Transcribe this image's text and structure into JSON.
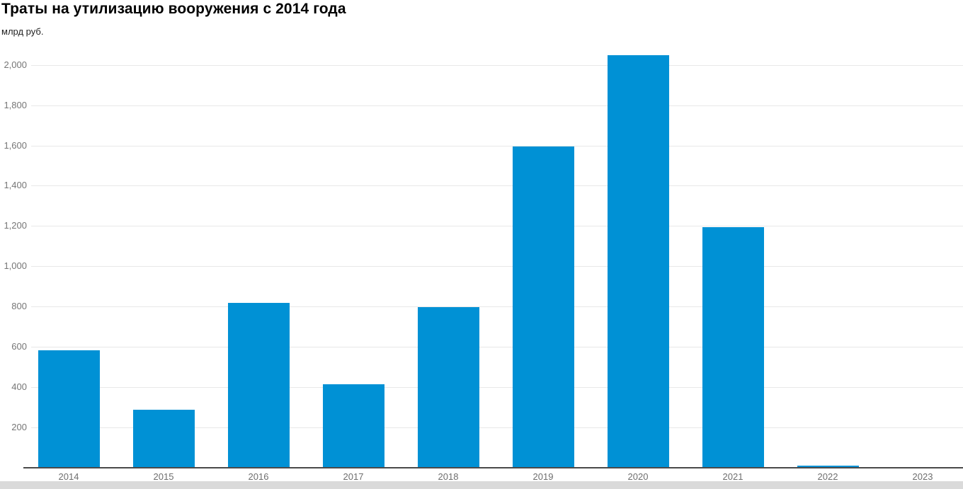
{
  "header": {
    "title": "Траты на утилизацию вооружения с 2014 года",
    "subtitle": "млрд руб."
  },
  "chart_data": {
    "type": "bar",
    "title": "Траты на утилизацию вооружения с 2014 года",
    "ylabel": "млрд руб.",
    "xlabel": "",
    "categories": [
      "2014",
      "2015",
      "2016",
      "2017",
      "2018",
      "2019",
      "2020",
      "2021",
      "2022",
      "2023"
    ],
    "values": [
      580,
      285,
      815,
      410,
      795,
      1590,
      2045,
      1190,
      8,
      0
    ],
    "ylim": [
      0,
      2100
    ],
    "ytick_interval": 200,
    "ytick_max": 2000,
    "grid": "horizontal",
    "legend": "none",
    "colors": {
      "bar": "#0091d5",
      "gridline": "#e8e8e8",
      "axis_line": "#4a4a4a",
      "tick_label": "#767676",
      "x_label": "#6e6e6e",
      "title": "#000000",
      "bottom_strip": "#dadada"
    }
  }
}
